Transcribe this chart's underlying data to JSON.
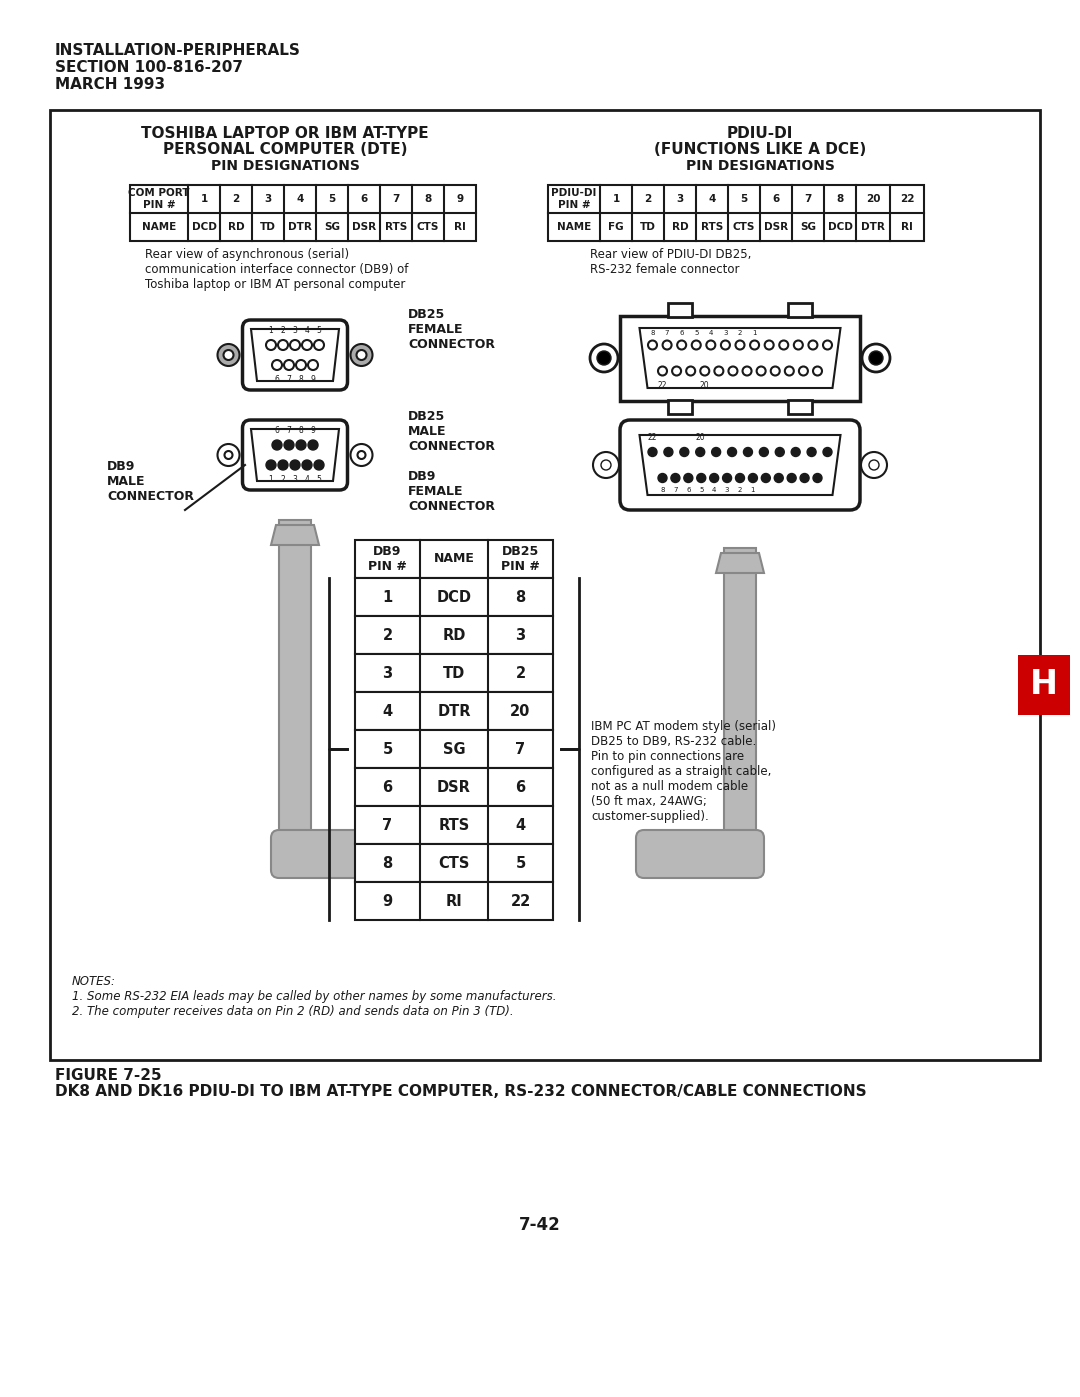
{
  "bg_color": "#ffffff",
  "text_color": "#1a1a1a",
  "header_line1": "INSTALLATION-PERIPHERALS",
  "header_line2": "SECTION 100-816-207",
  "header_line3": "MARCH 1993",
  "left_title1": "TOSHIBA LAPTOP OR IBM AT-TYPE",
  "left_title2": "PERSONAL COMPUTER (DTE)",
  "left_subtitle": "PIN DESIGNATIONS",
  "right_title1": "PDIU-DI",
  "right_title2": "(FUNCTIONS LIKE A DCE)",
  "right_subtitle": "PIN DESIGNATIONS",
  "left_table_header": [
    "COM PORT\nPIN #",
    "1",
    "2",
    "3",
    "4",
    "5",
    "6",
    "7",
    "8",
    "9"
  ],
  "left_table_names": [
    "NAME",
    "DCD",
    "RD",
    "TD",
    "DTR",
    "SG",
    "DSR",
    "RTS",
    "CTS",
    "RI"
  ],
  "right_table_header": [
    "PDIU-DI\nPIN #",
    "1",
    "2",
    "3",
    "4",
    "5",
    "6",
    "7",
    "8",
    "20",
    "22"
  ],
  "right_table_names": [
    "NAME",
    "FG",
    "TD",
    "RD",
    "RTS",
    "CTS",
    "DSR",
    "SG",
    "DCD",
    "DTR",
    "RI"
  ],
  "left_caption1": "Rear view of asynchronous (serial)",
  "left_caption2": "communication interface connector (DB9) of",
  "left_caption3": "Toshiba laptop or IBM AT personal computer",
  "right_caption1": "Rear view of PDIU-DI DB25,",
  "right_caption2": "RS-232 female connector",
  "db25_female_label": "DB25\nFEMALE\nCONNECTOR",
  "db25_male_label": "DB25\nMALE\nCONNECTOR",
  "db9_male_label": "DB9\nMALE\nCONNECTOR",
  "db9_female_label": "DB9\nFEMALE\nCONNECTOR",
  "center_table_cols": [
    "DB9\nPIN #",
    "NAME",
    "DB25\nPIN #"
  ],
  "center_table_rows": [
    [
      "1",
      "DCD",
      "8"
    ],
    [
      "2",
      "RD",
      "3"
    ],
    [
      "3",
      "TD",
      "2"
    ],
    [
      "4",
      "DTR",
      "20"
    ],
    [
      "5",
      "SG",
      "7"
    ],
    [
      "6",
      "DSR",
      "6"
    ],
    [
      "7",
      "RTS",
      "4"
    ],
    [
      "8",
      "CTS",
      "5"
    ],
    [
      "9",
      "RI",
      "22"
    ]
  ],
  "ibm_note1": "IBM PC AT modem style (serial)",
  "ibm_note2": "DB25 to DB9, RS-232 cable.",
  "ibm_note3": "Pin to pin connections are",
  "ibm_note4": "configured as a straight cable,",
  "ibm_note5": "not as a null modem cable",
  "ibm_note6": "(50 ft max, 24AWG;",
  "ibm_note7": "customer-supplied).",
  "notes_header": "NOTES:",
  "note1": "1. Some RS-232 EIA leads may be called by other names by some manufacturers.",
  "note2": "2. The computer receives data on Pin 2 (RD) and sends data on Pin 3 (TD).",
  "figure_label": "FIGURE 7-25",
  "figure_title": "DK8 AND DK16 PDIU-DI TO IBM AT-TYPE COMPUTER, RS-232 CONNECTOR/CABLE CONNECTIONS",
  "page_num": "7-42",
  "h_box_color": "#cc0000",
  "h_box_label": "H",
  "cable_color": "#b8b8b8",
  "cable_dark": "#888888"
}
